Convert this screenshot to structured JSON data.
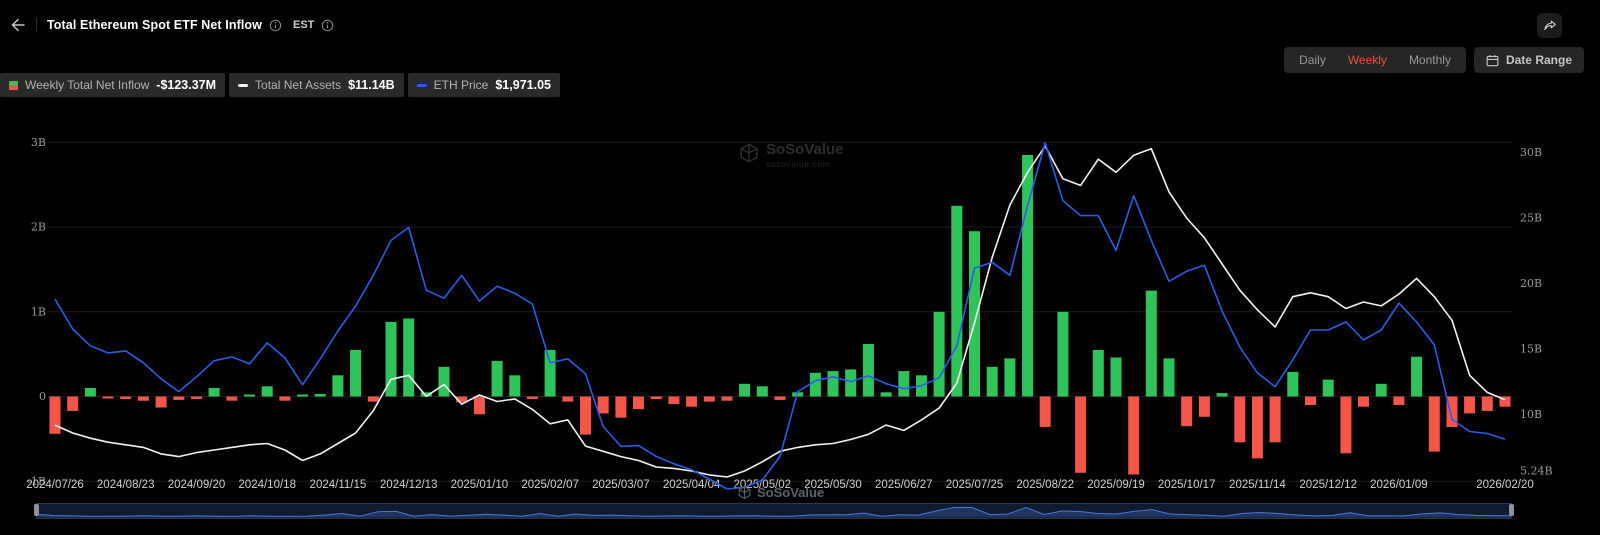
{
  "header": {
    "title": "Total Ethereum Spot ETF Net Inflow",
    "timezone_label": "EST"
  },
  "controls": {
    "frequency_options": [
      "Daily",
      "Weekly",
      "Monthly"
    ],
    "selected_frequency": "Weekly",
    "date_range_label": "Date Range"
  },
  "legend": [
    {
      "label": "Weekly Total Net Inflow",
      "value": "-$123.37M"
    },
    {
      "label": "Total Net Assets",
      "value": "$11.14B"
    },
    {
      "label": "ETH Price",
      "value": "$1,971.05"
    }
  ],
  "watermark": {
    "name": "SoSoValue",
    "domain": "sosovalue.com"
  },
  "colors": {
    "inflow_green": "#2ec45a",
    "outflow_red": "#f4564a",
    "eth_blue": "#2d5ce6",
    "assets_white": "#f2f2f2",
    "grid": "#1d1d1d",
    "selected_accent": "#e5533b"
  },
  "chart_data": {
    "type": "bar+line",
    "title": "Total Ethereum Spot ETF Net Inflow",
    "interval": "weekly",
    "x_range": [
      "2024/07/26",
      "2026/02/20"
    ],
    "x_tick_labels": [
      "2024/07/26",
      "2024/08/23",
      "2024/09/20",
      "2024/10/18",
      "2024/11/15",
      "2024/12/13",
      "2025/01/10",
      "2025/02/07",
      "2025/03/07",
      "2025/04/04",
      "2025/05/02",
      "2025/05/30",
      "2025/06/27",
      "2025/07/25",
      "2025/08/22",
      "2025/09/19",
      "2025/10/17",
      "2025/11/14",
      "2025/12/12",
      "2026/01/09",
      "2026/02/20"
    ],
    "left_axis": {
      "ticks": [
        "3B",
        "2B",
        "1B",
        "0",
        "-1B"
      ]
    },
    "right_axis": {
      "ticks": [
        "30B",
        "25B",
        "20B",
        "15B",
        "10B",
        "5.24B"
      ]
    },
    "grid": true,
    "legend_position": "top-left",
    "series": [
      {
        "name": "Weekly Total Net Inflow",
        "type": "bar",
        "unit": "billions USD",
        "values": [
          -0.44,
          -0.17,
          0.1,
          -0.02,
          -0.03,
          -0.05,
          -0.13,
          -0.04,
          -0.03,
          0.1,
          -0.05,
          0.02,
          0.12,
          -0.05,
          0.02,
          0.03,
          0.25,
          0.55,
          -0.06,
          0.88,
          0.92,
          0.05,
          0.35,
          -0.07,
          -0.21,
          0.42,
          0.25,
          -0.03,
          0.55,
          -0.06,
          -0.45,
          -0.2,
          -0.25,
          -0.15,
          -0.03,
          -0.09,
          -0.12,
          -0.06,
          -0.05,
          0.15,
          0.12,
          -0.04,
          0.05,
          0.28,
          0.3,
          0.32,
          0.62,
          0.05,
          0.3,
          0.25,
          1.0,
          2.25,
          1.95,
          0.35,
          0.45,
          2.85,
          -0.36,
          1.0,
          -0.9,
          0.55,
          0.46,
          -0.92,
          1.25,
          0.45,
          -0.35,
          -0.24,
          0.04,
          -0.54,
          -0.73,
          -0.54,
          0.29,
          -0.1,
          0.2,
          -0.67,
          -0.12,
          0.15,
          -0.1,
          0.47,
          -0.65,
          -0.36,
          -0.2,
          -0.17,
          -0.12
        ]
      },
      {
        "name": "Total Net Assets",
        "type": "line",
        "unit": "billions USD",
        "latest": "$11.14B",
        "values": [
          9.2,
          8.6,
          8.2,
          7.9,
          7.7,
          7.5,
          7.0,
          6.8,
          7.1,
          7.3,
          7.5,
          7.7,
          7.8,
          7.3,
          6.5,
          7.0,
          7.8,
          8.6,
          10.3,
          12.7,
          13.0,
          11.4,
          12.3,
          10.8,
          11.5,
          11.0,
          11.2,
          10.4,
          9.3,
          9.6,
          7.6,
          7.2,
          6.8,
          6.5,
          6.0,
          5.9,
          5.7,
          5.4,
          5.24,
          5.7,
          6.4,
          7.2,
          7.5,
          7.7,
          7.8,
          8.1,
          8.5,
          9.2,
          8.8,
          9.6,
          10.5,
          12.4,
          17.0,
          22.0,
          26.0,
          28.5,
          30.5,
          28.0,
          27.5,
          29.5,
          28.5,
          29.8,
          30.3,
          27.0,
          25.0,
          23.5,
          21.5,
          19.5,
          18.0,
          16.7,
          19.0,
          19.3,
          19.0,
          18.1,
          18.6,
          18.3,
          19.2,
          20.4,
          19.0,
          17.2,
          13.0,
          11.7,
          11.14
        ]
      },
      {
        "name": "ETH Price",
        "type": "line",
        "unit": "USD",
        "latest": "$1,971.05",
        "values": [
          3380,
          3080,
          2910,
          2840,
          2860,
          2740,
          2580,
          2450,
          2600,
          2760,
          2800,
          2730,
          2940,
          2790,
          2520,
          2780,
          3060,
          3310,
          3620,
          3970,
          4100,
          3470,
          3390,
          3620,
          3360,
          3510,
          3440,
          3330,
          2740,
          2780,
          2630,
          2100,
          1900,
          1910,
          1800,
          1725,
          1665,
          1573,
          1472,
          1490,
          1560,
          1800,
          2450,
          2560,
          2600,
          2550,
          2610,
          2530,
          2480,
          2510,
          2590,
          2910,
          3690,
          3750,
          3620,
          4320,
          4950,
          4370,
          4220,
          4220,
          3870,
          4420,
          3970,
          3560,
          3660,
          3720,
          3260,
          2900,
          2640,
          2500,
          2770,
          3070,
          3070,
          3150,
          2970,
          3070,
          3340,
          3150,
          2920,
          2170,
          2050,
          2030,
          1971.05
        ]
      }
    ]
  }
}
